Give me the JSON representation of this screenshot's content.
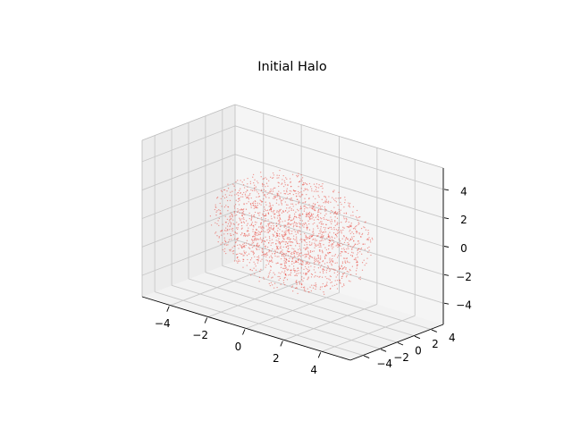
{
  "chart_data": {
    "type": "scatter",
    "projection": "3d",
    "title": "Initial Halo",
    "xlim": [
      -5.5,
      5.5
    ],
    "ylim": [
      -5.5,
      5.5
    ],
    "zlim": [
      -5.5,
      5.5
    ],
    "x_ticks": [
      -4,
      -2,
      0,
      2,
      4
    ],
    "y_ticks": [
      -4,
      -2,
      0,
      2,
      4
    ],
    "z_ticks": [
      -4,
      -2,
      0,
      2,
      4
    ],
    "x_tick_labels": [
      "−4",
      "−2",
      "0",
      "2",
      "4"
    ],
    "y_tick_labels": [
      "−4",
      "−2",
      "0",
      "2",
      "4"
    ],
    "z_tick_labels": [
      "−4",
      "−2",
      "0",
      "2",
      "4"
    ],
    "grid": true,
    "marker_color": "#e8453c",
    "pane_color": "#f2f2f2",
    "grid_color": "#c8c8c8",
    "distribution": "Uniform-density sphere, radius ≈ 4, 2000 particles"
  }
}
